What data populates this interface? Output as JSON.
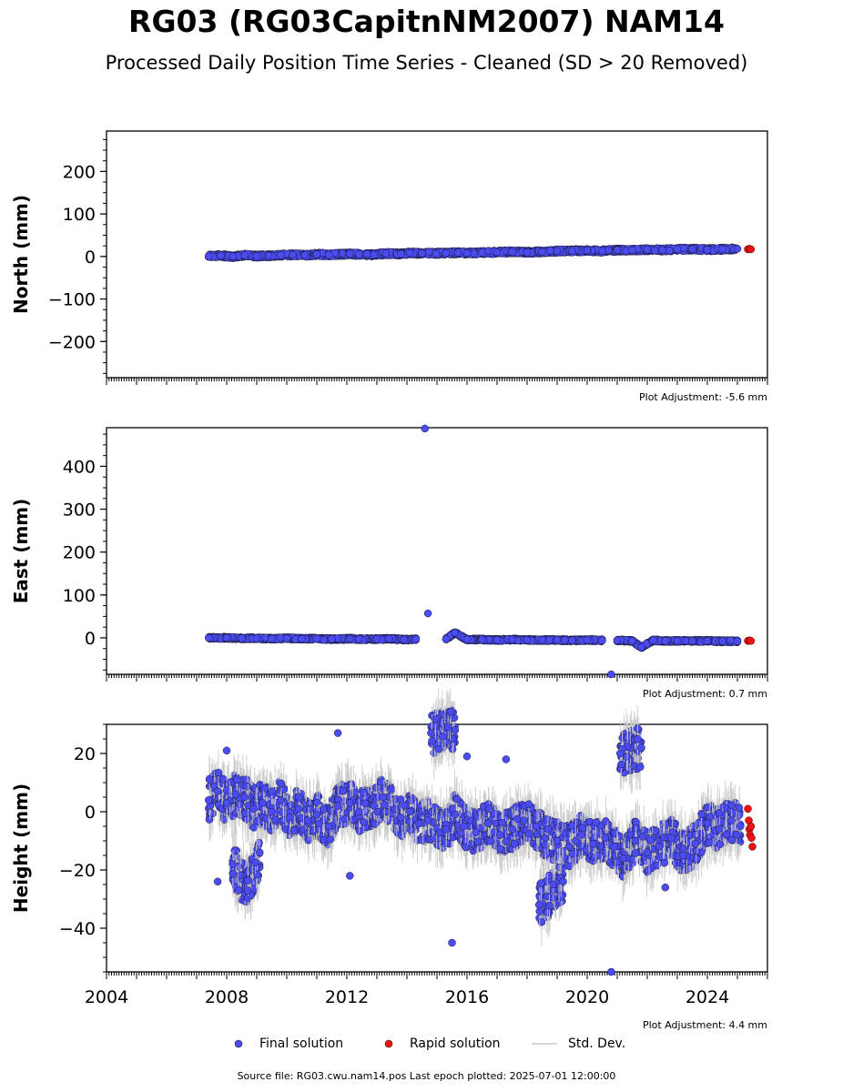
{
  "page": {
    "title": "RG03 (RG03CapitnNM2007) NAM14",
    "subtitle": "Processed Daily Position Time Series - Cleaned (SD > 20 Removed)",
    "source": "Source file: RG03.cwu.nam14.pos  Last epoch plotted: 2025-07-01 12:00:00"
  },
  "legend": {
    "final": "Final solution",
    "rapid": "Rapid solution",
    "std": "Std. Dev."
  },
  "colors": {
    "final": "#4b4bf2",
    "rapid": "#ee1111",
    "std": "#c8c8c8"
  },
  "chart_data": [
    {
      "type": "scatter",
      "ylabel": "North (mm)",
      "adjustment": "Plot Adjustment: -5.6 mm",
      "xlim": [
        2004,
        2026
      ],
      "ylim": [
        -285,
        295
      ],
      "yticks": [
        -200,
        -100,
        0,
        100,
        200
      ],
      "ytick_labels": [
        "−200",
        "−100",
        "0",
        "100",
        "200"
      ],
      "series": [
        {
          "x": [
            2007.4,
            2007.8,
            2008.2,
            2008.6,
            2009.0,
            2009.4,
            2009.8,
            2010.2,
            2010.6,
            2011.0,
            2011.4,
            2012.1,
            2012.4,
            2012.9,
            2013.3,
            2013.8,
            2014.1,
            2014.5,
            2015.3,
            2015.7,
            2016.0,
            2016.5,
            2017.0,
            2017.5,
            2018.0,
            2018.5,
            2019.0,
            2019.5,
            2020.0,
            2020.5,
            2021.0,
            2021.5,
            2022.0,
            2022.5,
            2023.0,
            2023.5,
            2024.0,
            2024.5,
            2025.0
          ],
          "y": [
            1,
            2,
            0,
            3,
            1,
            2,
            3,
            4,
            3,
            5,
            4,
            6,
            5,
            4,
            7,
            6,
            8,
            7,
            8,
            9,
            8,
            9,
            10,
            11,
            10,
            11,
            13,
            13,
            14,
            13,
            15,
            15,
            16,
            15,
            17,
            17,
            16,
            17,
            18
          ]
        },
        {
          "x": [
            2025.35,
            2025.4,
            2025.45
          ],
          "y": [
            17,
            18,
            17
          ]
        }
      ]
    },
    {
      "type": "scatter",
      "ylabel": "East (mm)",
      "adjustment": "Plot Adjustment: 0.7 mm",
      "xlim": [
        2004,
        2026
      ],
      "ylim": [
        -85,
        490
      ],
      "yticks": [
        0,
        100,
        200,
        300,
        400
      ],
      "ytick_labels": [
        "0",
        "100",
        "200",
        "300",
        "400"
      ],
      "series": [
        {
          "x": [
            2007.4,
            2008.0,
            2008.5,
            2009.0,
            2009.5,
            2010.0,
            2010.5,
            2011.0,
            2011.5,
            2012.1,
            2012.4,
            2013.0,
            2013.4,
            2013.9,
            2014.3,
            2014.6,
            2014.7,
            2015.3,
            2015.6,
            2016.0,
            2016.5,
            2017.0,
            2017.5,
            2018.0,
            2018.5,
            2019.0,
            2019.5,
            2020.0,
            2020.5,
            2020.8,
            2021.0,
            2021.5,
            2021.8,
            2022.2,
            2022.6,
            2023.0,
            2023.5,
            2024.0,
            2024.5,
            2025.0
          ],
          "y": [
            0,
            0,
            -1,
            -1,
            -2,
            -1,
            -2,
            -2,
            -3,
            -2,
            -3,
            -3,
            -2,
            -4,
            -3,
            488,
            57,
            -3,
            12,
            -4,
            -4,
            -5,
            -4,
            -5,
            -5,
            -5,
            -6,
            -5,
            -6,
            -85,
            -6,
            -7,
            -22,
            -6,
            -7,
            -7,
            -7,
            -7,
            -8,
            -8
          ]
        },
        {
          "x": [
            2025.35,
            2025.4,
            2025.45
          ],
          "y": [
            -7,
            -6,
            -7
          ]
        }
      ]
    },
    {
      "type": "scatter",
      "ylabel": "Height (mm)",
      "adjustment": "Plot Adjustment: 4.4 mm",
      "xlim": [
        2004,
        2026
      ],
      "ylim": [
        -55,
        30
      ],
      "yticks": [
        -40,
        -20,
        0,
        20
      ],
      "ytick_labels": [
        "−40",
        "−20",
        "0",
        "20"
      ],
      "series": [
        {
          "x": [
            2007.4,
            2007.7,
            2008.0,
            2008.3,
            2008.6,
            2008.9,
            2009.2,
            2009.5,
            2009.8,
            2010.1,
            2010.4,
            2010.7,
            2011.0,
            2011.4,
            2011.7,
            2012.1,
            2012.4,
            2012.9,
            2013.2,
            2013.8,
            2014.1,
            2014.4,
            2014.7,
            2015.3,
            2015.6,
            2015.9,
            2016.3,
            2016.7,
            2017.1,
            2017.5,
            2017.9,
            2018.3,
            2018.6,
            2019.0,
            2019.4,
            2019.8,
            2020.2,
            2020.6,
            2020.9,
            2021.2,
            2021.6,
            2022.0,
            2022.4,
            2022.8,
            2023.2,
            2023.6,
            2024.0,
            2024.4,
            2024.8,
            2025.1,
            2008.2,
            2008.7,
            2009.1,
            2011.7,
            2012.1,
            2014.8,
            2015.6,
            2015.5,
            2020.8,
            2021.1,
            2021.8,
            2017.3,
            2018.4,
            2019.2,
            2022.6,
            2008.0,
            2016.0,
            2007.7
          ],
          "y": [
            4,
            7,
            3,
            6,
            5,
            1,
            3,
            0,
            4,
            -2,
            1,
            -3,
            -1,
            -5,
            2,
            3,
            0,
            2,
            5,
            -2,
            0,
            -4,
            -3,
            -6,
            -1,
            -5,
            -7,
            -4,
            -8,
            -6,
            -3,
            -5,
            -9,
            -10,
            -12,
            -8,
            -11,
            -9,
            -12,
            -16,
            -10,
            -14,
            -12,
            -9,
            -15,
            -11,
            -4,
            -6,
            -3,
            -5,
            -18,
            -27,
            -14,
            27,
            -22,
            27,
            28,
            -45,
            -55,
            20,
            22,
            18,
            -32,
            -24,
            -26,
            21,
            19,
            -24
          ]
        },
        {
          "x": [
            2025.35,
            2025.38,
            2025.4,
            2025.42,
            2025.45,
            2025.47,
            2025.5
          ],
          "y": [
            1,
            -3,
            -6,
            -8,
            -5,
            -9,
            -12
          ]
        }
      ]
    }
  ],
  "x_axis": {
    "ticks": [
      2004,
      2008,
      2012,
      2016,
      2020,
      2024
    ],
    "labels": [
      "2004",
      "2008",
      "2012",
      "2016",
      "2020",
      "2024"
    ]
  }
}
